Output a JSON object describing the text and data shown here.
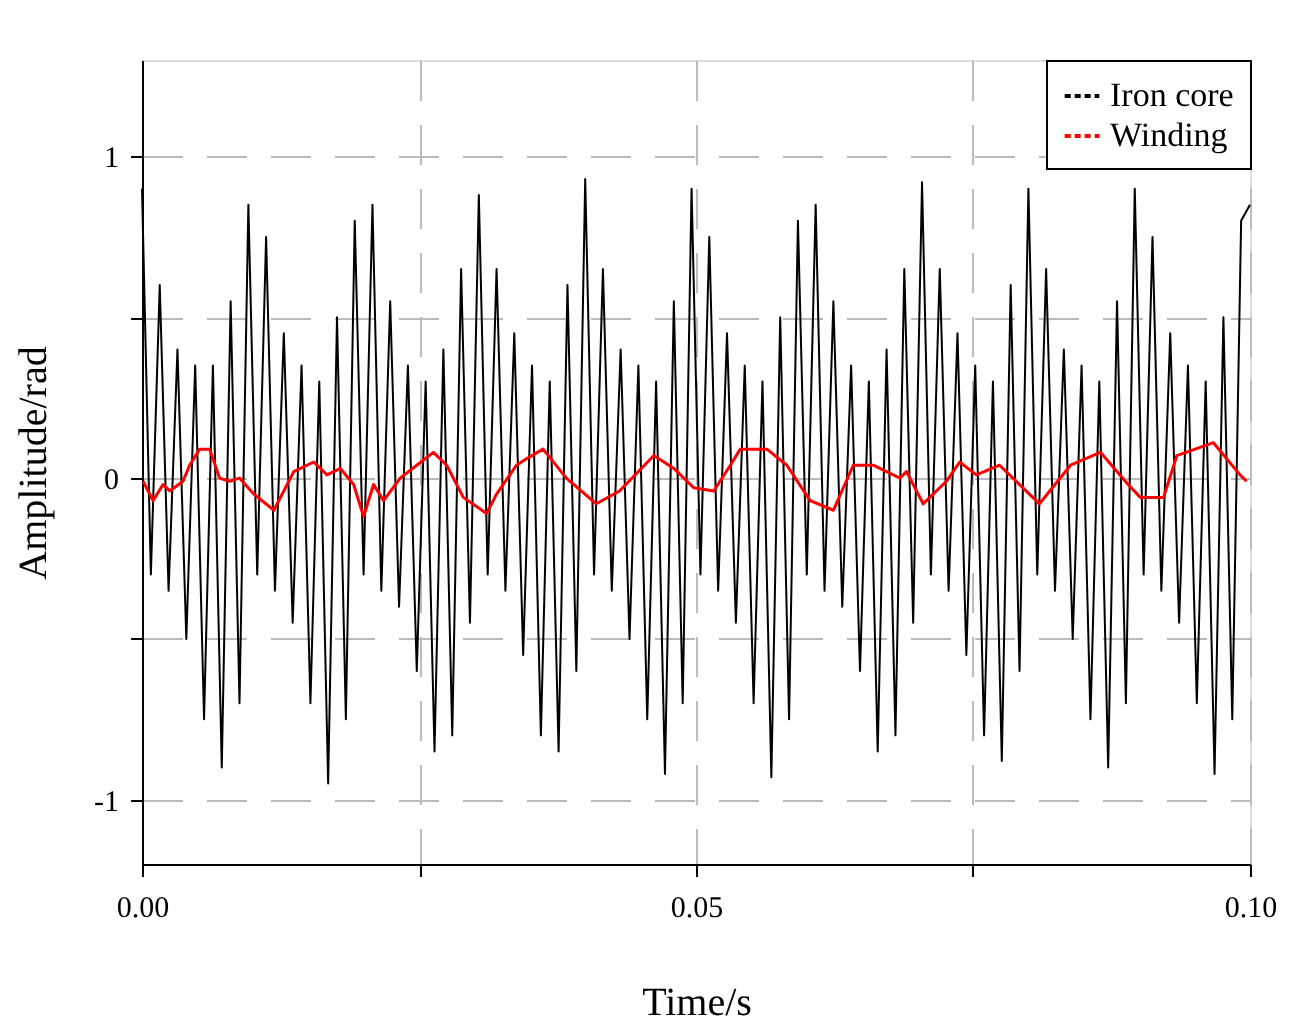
{
  "chart_data": {
    "type": "line",
    "xlabel": "Time/s",
    "ylabel": "Amplitude/rad",
    "xlim": [
      0,
      0.1
    ],
    "ylim": [
      -1.2,
      1.3
    ],
    "xticks": [
      {
        "value": 0,
        "label": "0.00"
      },
      {
        "value": 0.025,
        "label": null
      },
      {
        "value": 0.05,
        "label": "0.05"
      },
      {
        "value": 0.075,
        "label": null
      },
      {
        "value": 0.1,
        "label": "0.10"
      }
    ],
    "yticks": [
      -1,
      {
        "value": -0.5,
        "label": null
      },
      0,
      {
        "value": 0.5,
        "label": null
      },
      1
    ],
    "grid": true,
    "legend": "top right",
    "line_style": "solid",
    "marker": "none",
    "series": [
      {
        "name": "Iron core",
        "color": "#000000",
        "x": [
          0,
          0.0008,
          0.0016,
          0.0024,
          0.0032,
          0.004,
          0.0048,
          0.0056,
          0.0064,
          0.0072,
          0.008,
          0.0088,
          0.0096,
          0.0104,
          0.0112,
          0.012,
          0.0128,
          0.0136,
          0.0144,
          0.0152,
          0.016,
          0.0168,
          0.0176,
          0.0184,
          0.0192,
          0.02,
          0.0208,
          0.0216,
          0.0224,
          0.0232,
          0.024,
          0.0248,
          0.0256,
          0.0264,
          0.0272,
          0.028,
          0.0288,
          0.0296,
          0.0304,
          0.0312,
          0.032,
          0.0328,
          0.0336,
          0.0344,
          0.0352,
          0.036,
          0.0368,
          0.0376,
          0.0384,
          0.0392,
          0.04,
          0.0408,
          0.0416,
          0.0424,
          0.0432,
          0.044,
          0.0448,
          0.0456,
          0.0464,
          0.0472,
          0.048,
          0.0488,
          0.0496,
          0.0504,
          0.0512,
          0.052,
          0.0528,
          0.0536,
          0.0544,
          0.0552,
          0.056,
          0.0568,
          0.0576,
          0.0584,
          0.0592,
          0.06,
          0.0608,
          0.0616,
          0.0624,
          0.0632,
          0.064,
          0.0648,
          0.0656,
          0.0664,
          0.0672,
          0.068,
          0.0688,
          0.0696,
          0.0704,
          0.0712,
          0.072,
          0.0728,
          0.0736,
          0.0744,
          0.0752,
          0.076,
          0.0768,
          0.0776,
          0.0784,
          0.0792,
          0.08,
          0.0808,
          0.0816,
          0.0824,
          0.0832,
          0.084,
          0.0848,
          0.0856,
          0.0864,
          0.0872,
          0.088,
          0.0888,
          0.0896,
          0.0904,
          0.0912,
          0.092,
          0.0928,
          0.0936,
          0.0944,
          0.0952,
          0.096,
          0.0968,
          0.0976,
          0.0984,
          0.0992,
          0.1
        ],
        "values": [
          0.9,
          -0.3,
          0.6,
          -0.35,
          0.4,
          -0.5,
          0.35,
          -0.75,
          0.35,
          -0.9,
          0.55,
          -0.7,
          0.85,
          -0.3,
          0.75,
          -0.35,
          0.45,
          -0.45,
          0.35,
          -0.7,
          0.3,
          -0.95,
          0.5,
          -0.75,
          0.8,
          -0.3,
          0.85,
          -0.35,
          0.55,
          -0.4,
          0.35,
          -0.6,
          0.3,
          -0.85,
          0.4,
          -0.8,
          0.65,
          -0.45,
          0.88,
          -0.3,
          0.65,
          -0.35,
          0.45,
          -0.55,
          0.35,
          -0.8,
          0.3,
          -0.85,
          0.6,
          -0.6,
          0.93,
          -0.3,
          0.65,
          -0.35,
          0.4,
          -0.5,
          0.35,
          -0.75,
          0.3,
          -0.92,
          0.55,
          -0.7,
          0.9,
          -0.3,
          0.75,
          -0.35,
          0.45,
          -0.45,
          0.35,
          -0.7,
          0.3,
          -0.93,
          0.5,
          -0.75,
          0.8,
          -0.3,
          0.85,
          -0.35,
          0.55,
          -0.4,
          0.35,
          -0.6,
          0.3,
          -0.85,
          0.4,
          -0.8,
          0.65,
          -0.45,
          0.92,
          -0.3,
          0.65,
          -0.35,
          0.45,
          -0.55,
          0.35,
          -0.8,
          0.3,
          -0.88,
          0.6,
          -0.6,
          0.9,
          -0.3,
          0.65,
          -0.35,
          0.4,
          -0.5,
          0.35,
          -0.75,
          0.3,
          -0.9,
          0.55,
          -0.7,
          0.9,
          -0.3,
          0.75,
          -0.35,
          0.45,
          -0.45,
          0.35,
          -0.7,
          0.3,
          -0.92,
          0.5,
          -0.75,
          0.8,
          0.85
        ]
      },
      {
        "name": "Winding",
        "color": "#ff0000",
        "x": [
          0.0001,
          0.001,
          0.0019,
          0.0025,
          0.0037,
          0.0043,
          0.0052,
          0.0061,
          0.007,
          0.0079,
          0.0088,
          0.0101,
          0.0119,
          0.0137,
          0.0155,
          0.0167,
          0.0179,
          0.0191,
          0.02,
          0.0209,
          0.0218,
          0.0233,
          0.0248,
          0.0263,
          0.0275,
          0.029,
          0.0311,
          0.032,
          0.0338,
          0.0347,
          0.0362,
          0.0383,
          0.041,
          0.0431,
          0.0462,
          0.048,
          0.0498,
          0.0516,
          0.0531,
          0.054,
          0.0564,
          0.0582,
          0.0603,
          0.0624,
          0.0642,
          0.066,
          0.0684,
          0.069,
          0.0705,
          0.0726,
          0.0738,
          0.0753,
          0.0774,
          0.081,
          0.0838,
          0.0865,
          0.089,
          0.0901,
          0.0922,
          0.0934,
          0.0967,
          0.0991,
          0.0997
        ],
        "values": [
          -0.01,
          -0.07,
          -0.02,
          -0.04,
          -0.01,
          0.04,
          0.09,
          0.09,
          0,
          -0.01,
          0,
          -0.05,
          -0.1,
          0.02,
          0.05,
          0.01,
          0.03,
          -0.02,
          -0.12,
          -0.02,
          -0.07,
          0,
          0.04,
          0.08,
          0.04,
          -0.06,
          -0.11,
          -0.05,
          0.04,
          0.06,
          0.09,
          0,
          -0.08,
          -0.04,
          0.07,
          0.03,
          -0.03,
          -0.04,
          0.04,
          0.09,
          0.09,
          0.04,
          -0.07,
          -0.1,
          0.04,
          0.04,
          0,
          0.02,
          -0.08,
          -0.01,
          0.05,
          0.01,
          0.04,
          -0.08,
          0.04,
          0.08,
          -0.02,
          -0.06,
          -0.06,
          0.07,
          0.11,
          0.01,
          -0.01
        ]
      }
    ]
  }
}
